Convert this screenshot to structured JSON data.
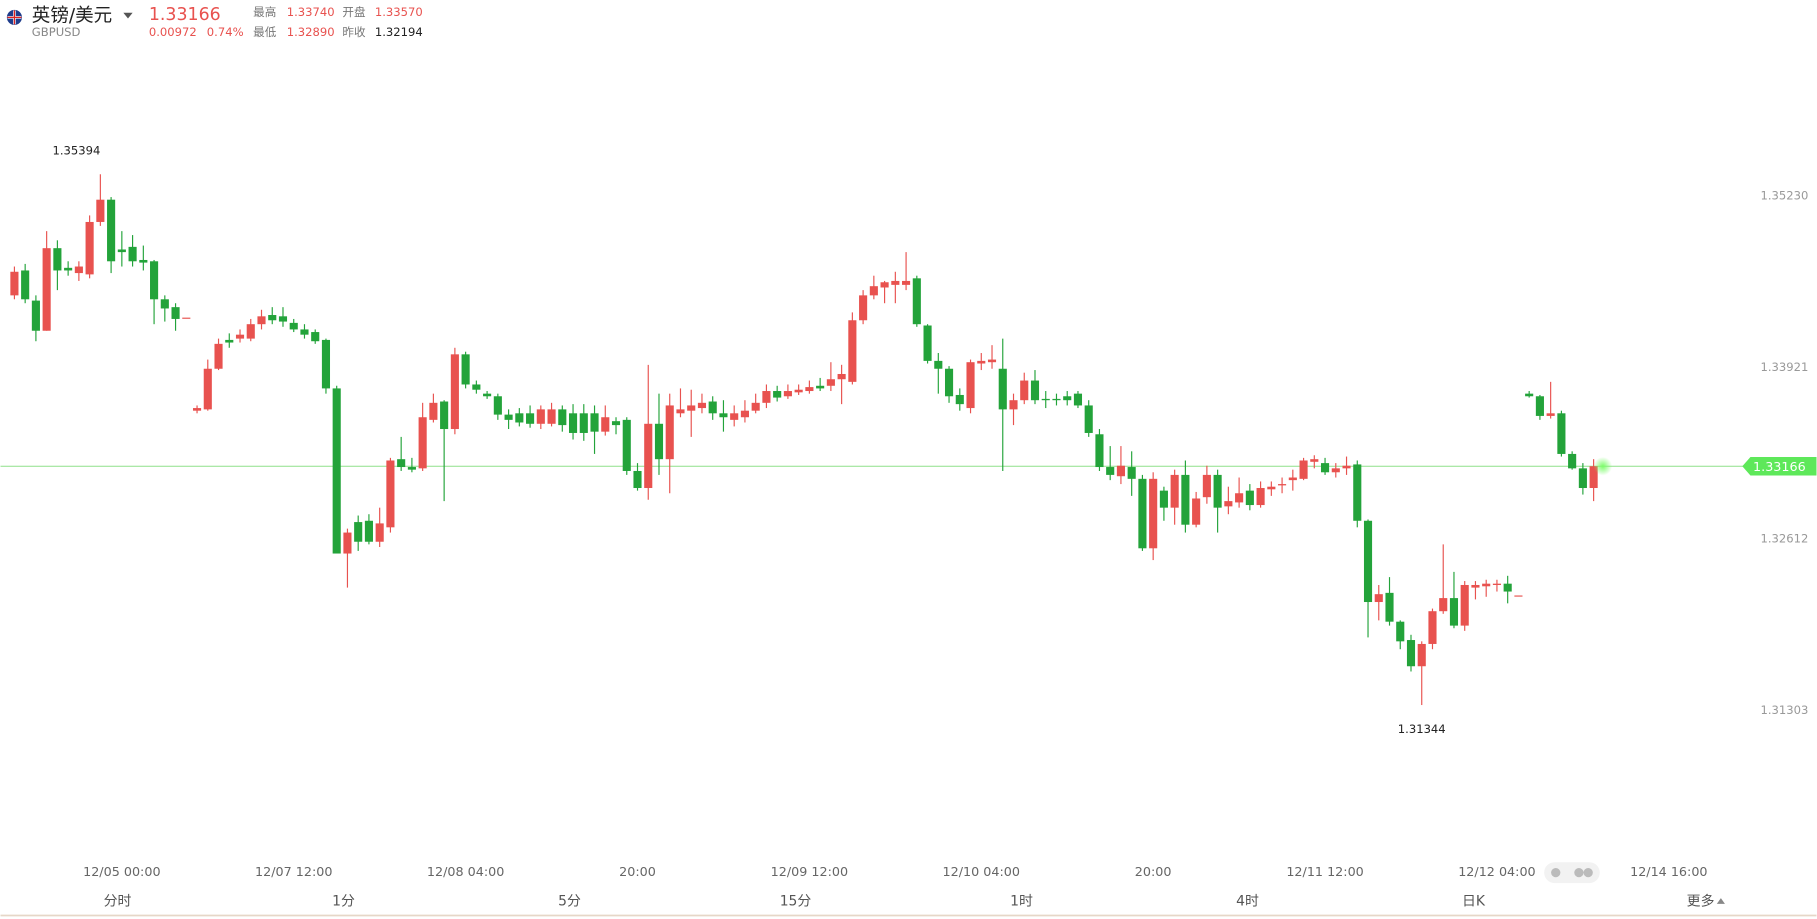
{
  "header": {
    "name": "英镑/美元",
    "code": "GBPUSD",
    "price": "1.33166",
    "change": "0.00972",
    "change_pct": "0.74%",
    "stats": [
      {
        "label": "最高",
        "value": "1.33740"
      },
      {
        "label": "开盘",
        "value": "1.33570"
      },
      {
        "label": "最低",
        "value": "1.32890"
      },
      {
        "label": "昨收",
        "value": "1.32194"
      }
    ]
  },
  "chart_data": {
    "type": "candlestick",
    "up_color": "#e8524f",
    "down_color": "#23a33a",
    "ylim": [
      1.3018,
      1.3637
    ],
    "yticks": [
      {
        "value": 1.3523,
        "label": "1.35230"
      },
      1.33921,
      1.32612,
      1.31303
    ],
    "xticks": [
      {
        "value": 10,
        "label": "12/05 00:00"
      },
      {
        "value": 26,
        "label": "12/07 12:00"
      },
      {
        "value": 42,
        "label": "12/08 04:00"
      },
      {
        "value": 58,
        "label": "20:00"
      },
      {
        "value": 74,
        "label": "12/09 12:00"
      },
      {
        "value": 90,
        "label": "12/10 04:00"
      },
      {
        "value": 106,
        "label": "20:00"
      },
      {
        "value": 122,
        "label": "12/11 12:00"
      },
      {
        "value": 138,
        "label": "12/12 04:00"
      },
      {
        "value": 154,
        "label": "12/14 16:00"
      }
    ],
    "last_price": 1.33166,
    "high_label": "1.35394",
    "low_label": "1.31344",
    "ohlc": [
      [
        1.3447,
        1.3469,
        1.3444,
        1.3465
      ],
      [
        1.3466,
        1.3471,
        1.3441,
        1.3444
      ],
      [
        1.3443,
        1.3447,
        1.3412,
        1.342
      ],
      [
        1.342,
        1.3496,
        1.342,
        1.3483
      ],
      [
        1.3483,
        1.3489,
        1.3451,
        1.3466
      ],
      [
        1.3468,
        1.3473,
        1.3462,
        1.3466
      ],
      [
        1.3464,
        1.3473,
        1.3458,
        1.3469
      ],
      [
        1.3463,
        1.3508,
        1.346,
        1.3503
      ],
      [
        1.3503,
        1.35394,
        1.35,
        1.352
      ],
      [
        1.352,
        1.3522,
        1.3464,
        1.3473
      ],
      [
        1.3482,
        1.3496,
        1.3469,
        1.348
      ],
      [
        1.3484,
        1.3493,
        1.3469,
        1.3473
      ],
      [
        1.3474,
        1.3485,
        1.3466,
        1.3472
      ],
      [
        1.3473,
        1.3474,
        1.3425,
        1.3444
      ],
      [
        1.3444,
        1.3447,
        1.3427,
        1.3437
      ],
      [
        1.3438,
        1.3441,
        1.342,
        1.3429
      ],
      [
        1.343,
        1.343,
        1.343,
        1.343
      ],
      [
        1.3359,
        1.3363,
        1.3357,
        1.3361
      ],
      [
        1.336,
        1.3398,
        1.3359,
        1.3391
      ],
      [
        1.3391,
        1.3414,
        1.339,
        1.341
      ],
      [
        1.3413,
        1.3418,
        1.3407,
        1.3411
      ],
      [
        1.3414,
        1.3421,
        1.3411,
        1.3417
      ],
      [
        1.3414,
        1.3429,
        1.3412,
        1.3425
      ],
      [
        1.3425,
        1.3436,
        1.3421,
        1.3431
      ],
      [
        1.3432,
        1.3438,
        1.3425,
        1.3428
      ],
      [
        1.3431,
        1.3438,
        1.3423,
        1.3427
      ],
      [
        1.3426,
        1.3429,
        1.3419,
        1.3421
      ],
      [
        1.3421,
        1.3425,
        1.3414,
        1.3417
      ],
      [
        1.3419,
        1.3421,
        1.341,
        1.3412
      ],
      [
        1.3413,
        1.3414,
        1.3372,
        1.3376
      ],
      [
        1.3376,
        1.3378,
        1.325,
        1.325
      ],
      [
        1.325,
        1.3269,
        1.3224,
        1.3266
      ],
      [
        1.3274,
        1.3279,
        1.3252,
        1.3259
      ],
      [
        1.3275,
        1.328,
        1.3257,
        1.3259
      ],
      [
        1.3259,
        1.3285,
        1.3255,
        1.3273
      ],
      [
        1.327,
        1.3323,
        1.3266,
        1.3321
      ],
      [
        1.3322,
        1.3339,
        1.3313,
        1.3316
      ],
      [
        1.3316,
        1.3323,
        1.3312,
        1.3314
      ],
      [
        1.3315,
        1.3365,
        1.3313,
        1.3354
      ],
      [
        1.3352,
        1.3372,
        1.335,
        1.3365
      ],
      [
        1.3366,
        1.3367,
        1.329,
        1.3345
      ],
      [
        1.3345,
        1.3407,
        1.3341,
        1.3402
      ],
      [
        1.3402,
        1.3404,
        1.3376,
        1.3379
      ],
      [
        1.3379,
        1.3382,
        1.3372,
        1.3375
      ],
      [
        1.3372,
        1.3374,
        1.3368,
        1.337
      ],
      [
        1.337,
        1.3372,
        1.3352,
        1.3356
      ],
      [
        1.3356,
        1.336,
        1.3345,
        1.3352
      ],
      [
        1.3357,
        1.3361,
        1.3347,
        1.335
      ],
      [
        1.3357,
        1.3363,
        1.3346,
        1.3349
      ],
      [
        1.3349,
        1.3363,
        1.3345,
        1.336
      ],
      [
        1.3349,
        1.3365,
        1.3347,
        1.336
      ],
      [
        1.336,
        1.3363,
        1.3343,
        1.3348
      ],
      [
        1.3357,
        1.3364,
        1.3337,
        1.3342
      ],
      [
        1.3357,
        1.3364,
        1.3336,
        1.3342
      ],
      [
        1.3357,
        1.3363,
        1.3326,
        1.3343
      ],
      [
        1.3343,
        1.3363,
        1.334,
        1.3354
      ],
      [
        1.3351,
        1.3354,
        1.3341,
        1.3348
      ],
      [
        1.3352,
        1.3354,
        1.331,
        1.3313
      ],
      [
        1.3313,
        1.3319,
        1.3298,
        1.33
      ],
      [
        1.33,
        1.3394,
        1.3291,
        1.3349
      ],
      [
        1.3349,
        1.3372,
        1.331,
        1.3322
      ],
      [
        1.3322,
        1.3372,
        1.3296,
        1.3363
      ],
      [
        1.3357,
        1.3376,
        1.3354,
        1.336
      ],
      [
        1.3359,
        1.3375,
        1.3339,
        1.3363
      ],
      [
        1.3361,
        1.3372,
        1.3357,
        1.3365
      ],
      [
        1.3366,
        1.337,
        1.3352,
        1.3357
      ],
      [
        1.3357,
        1.3367,
        1.3343,
        1.3354
      ],
      [
        1.3352,
        1.3363,
        1.3347,
        1.3357
      ],
      [
        1.3354,
        1.3367,
        1.335,
        1.3359
      ],
      [
        1.3359,
        1.3372,
        1.3357,
        1.3365
      ],
      [
        1.3365,
        1.3379,
        1.3361,
        1.3374
      ],
      [
        1.3374,
        1.3378,
        1.3366,
        1.3369
      ],
      [
        1.337,
        1.3379,
        1.3368,
        1.3374
      ],
      [
        1.3373,
        1.3379,
        1.3371,
        1.3375
      ],
      [
        1.3374,
        1.3382,
        1.3372,
        1.3377
      ],
      [
        1.3378,
        1.3384,
        1.3374,
        1.3376
      ],
      [
        1.3378,
        1.3396,
        1.3374,
        1.3383
      ],
      [
        1.3383,
        1.3394,
        1.3364,
        1.3387
      ],
      [
        1.3381,
        1.3434,
        1.3379,
        1.3428
      ],
      [
        1.3428,
        1.3451,
        1.3425,
        1.3447
      ],
      [
        1.3447,
        1.3462,
        1.3444,
        1.3454
      ],
      [
        1.3453,
        1.3458,
        1.3441,
        1.3457
      ],
      [
        1.3455,
        1.3465,
        1.3441,
        1.3458
      ],
      [
        1.3455,
        1.348,
        1.3451,
        1.3458
      ],
      [
        1.346,
        1.3462,
        1.3423,
        1.3425
      ],
      [
        1.3424,
        1.3425,
        1.3395,
        1.3397
      ],
      [
        1.3397,
        1.3403,
        1.3372,
        1.3391
      ],
      [
        1.3391,
        1.3393,
        1.3365,
        1.337
      ],
      [
        1.3371,
        1.3376,
        1.3359,
        1.3364
      ],
      [
        1.3361,
        1.3398,
        1.3357,
        1.3396
      ],
      [
        1.3395,
        1.3403,
        1.339,
        1.3397
      ],
      [
        1.3396,
        1.3409,
        1.3391,
        1.3398
      ],
      [
        1.3391,
        1.3414,
        1.3313,
        1.336
      ],
      [
        1.336,
        1.3372,
        1.3348,
        1.3367
      ],
      [
        1.3367,
        1.3388,
        1.3364,
        1.3382
      ],
      [
        1.3382,
        1.339,
        1.3364,
        1.3367
      ],
      [
        1.3368,
        1.3374,
        1.3361,
        1.3367
      ],
      [
        1.3368,
        1.3372,
        1.3363,
        1.3367
      ],
      [
        1.337,
        1.3374,
        1.3363,
        1.3367
      ],
      [
        1.3372,
        1.3374,
        1.3361,
        1.3363
      ],
      [
        1.3363,
        1.3367,
        1.3339,
        1.3342
      ],
      [
        1.3341,
        1.3345,
        1.3313,
        1.3316
      ],
      [
        1.3316,
        1.3332,
        1.3306,
        1.331
      ],
      [
        1.3309,
        1.3332,
        1.3303,
        1.3317
      ],
      [
        1.3316,
        1.3328,
        1.3294,
        1.3307
      ],
      [
        1.3307,
        1.331,
        1.3252,
        1.3254
      ],
      [
        1.3254,
        1.3312,
        1.3245,
        1.3307
      ],
      [
        1.3298,
        1.3301,
        1.3275,
        1.3285
      ],
      [
        1.3285,
        1.3314,
        1.3272,
        1.331
      ],
      [
        1.331,
        1.3321,
        1.3266,
        1.3272
      ],
      [
        1.3272,
        1.3297,
        1.327,
        1.3292
      ],
      [
        1.3293,
        1.3317,
        1.3288,
        1.331
      ],
      [
        1.331,
        1.3314,
        1.3266,
        1.3285
      ],
      [
        1.3286,
        1.3301,
        1.328,
        1.329
      ],
      [
        1.3289,
        1.3308,
        1.3285,
        1.3296
      ],
      [
        1.3298,
        1.3303,
        1.3283,
        1.3287
      ],
      [
        1.3287,
        1.3305,
        1.3285,
        1.33
      ],
      [
        1.3299,
        1.3305,
        1.3294,
        1.3301
      ],
      [
        1.3302,
        1.3308,
        1.3296,
        1.3303
      ],
      [
        1.3306,
        1.3314,
        1.3298,
        1.3308
      ],
      [
        1.3307,
        1.3323,
        1.3306,
        1.3321
      ],
      [
        1.332,
        1.3325,
        1.3315,
        1.3322
      ],
      [
        1.3319,
        1.3323,
        1.331,
        1.3312
      ],
      [
        1.3312,
        1.3319,
        1.3308,
        1.3315
      ],
      [
        1.3315,
        1.3324,
        1.331,
        1.3317
      ],
      [
        1.3318,
        1.3321,
        1.327,
        1.3275
      ],
      [
        1.3275,
        1.3276,
        1.3186,
        1.3213
      ],
      [
        1.3213,
        1.3226,
        1.3199,
        1.3219
      ],
      [
        1.322,
        1.3232,
        1.3195,
        1.3198
      ],
      [
        1.3198,
        1.3199,
        1.3177,
        1.3183
      ],
      [
        1.3184,
        1.3188,
        1.316,
        1.3164
      ],
      [
        1.3164,
        1.3183,
        1.31344,
        1.3181
      ],
      [
        1.3181,
        1.3208,
        1.3177,
        1.3206
      ],
      [
        1.3206,
        1.3257,
        1.3204,
        1.3216
      ],
      [
        1.3216,
        1.3236,
        1.3193,
        1.3195
      ],
      [
        1.3195,
        1.3229,
        1.3191,
        1.3226
      ],
      [
        1.3224,
        1.3229,
        1.3215,
        1.3226
      ],
      [
        1.3225,
        1.323,
        1.3217,
        1.3227
      ],
      [
        1.3226,
        1.323,
        1.3221,
        1.3227
      ],
      [
        1.3227,
        1.3233,
        1.3212,
        1.3221
      ],
      [
        1.3218,
        1.3218,
        1.3218,
        1.3218
      ],
      [
        1.3372,
        1.3374,
        1.3369,
        1.337
      ],
      [
        1.337,
        1.3371,
        1.3352,
        1.3355
      ],
      [
        1.3355,
        1.3381,
        1.3353,
        1.3357
      ],
      [
        1.3357,
        1.3359,
        1.3324,
        1.3326
      ],
      [
        1.3326,
        1.3328,
        1.3314,
        1.3315
      ],
      [
        1.3315,
        1.3319,
        1.3295,
        1.33
      ],
      [
        1.33,
        1.3322,
        1.329,
        1.33166
      ]
    ]
  },
  "tabs": [
    "分时",
    "1分",
    "5分",
    "15分",
    "1时",
    "4时",
    "日K"
  ],
  "more": "更多"
}
